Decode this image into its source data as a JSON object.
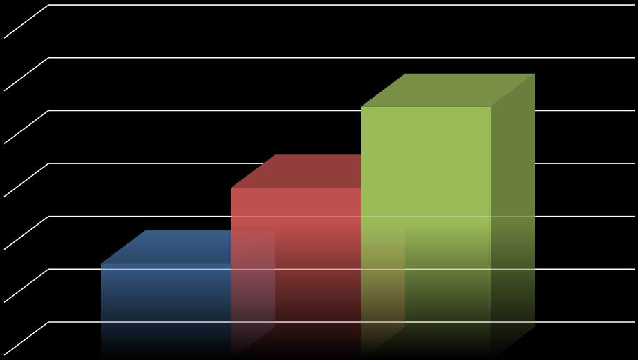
{
  "chart_data": {
    "type": "bar",
    "style": "3d-column",
    "categories": [
      "",
      "",
      ""
    ],
    "series": [
      {
        "values": [
          2.6,
          4.75,
          7.05
        ]
      }
    ],
    "ylim": [
      0,
      9
    ],
    "grid": true,
    "legend": "none",
    "colors": {
      "background": "#000000",
      "gridline": "#ffffff",
      "bars": [
        "#4f81bd",
        "#c0504d",
        "#9bbb59"
      ]
    }
  }
}
